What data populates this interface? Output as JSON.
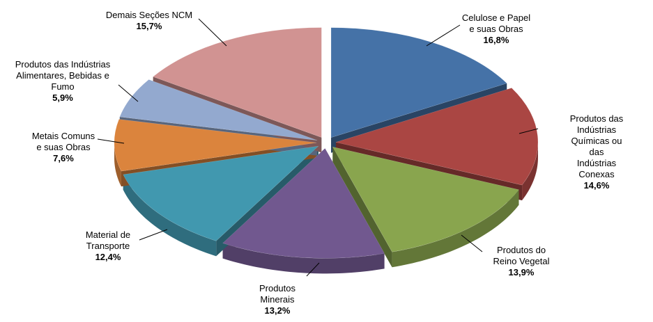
{
  "chart_data": {
    "type": "pie3d",
    "categories": [
      "Celulose e Papel\ne suas Obras",
      "Produtos das Indústrias\nQuímicas ou das\nIndústrias Conexas",
      "Produtos do\nReino Vegetal",
      "Produtos\nMinerais",
      "Material de\nTransporte",
      "Metais Comuns\ne suas Obras",
      "Produtos das Indústrias\nAlimentares, Bebidas e\nFumo",
      "Demais Seções NCM"
    ],
    "values": [
      16.8,
      14.6,
      13.9,
      13.2,
      12.4,
      7.6,
      5.9,
      15.7
    ],
    "value_labels": [
      "16,8%",
      "14,6%",
      "13,9%",
      "13,2%",
      "12,4%",
      "7,6%",
      "5,9%",
      "15,7%"
    ],
    "colors": [
      "#4572a7",
      "#aa4643",
      "#89a54e",
      "#71588f",
      "#4198af",
      "#db843d",
      "#93a9cf",
      "#d19392"
    ]
  }
}
